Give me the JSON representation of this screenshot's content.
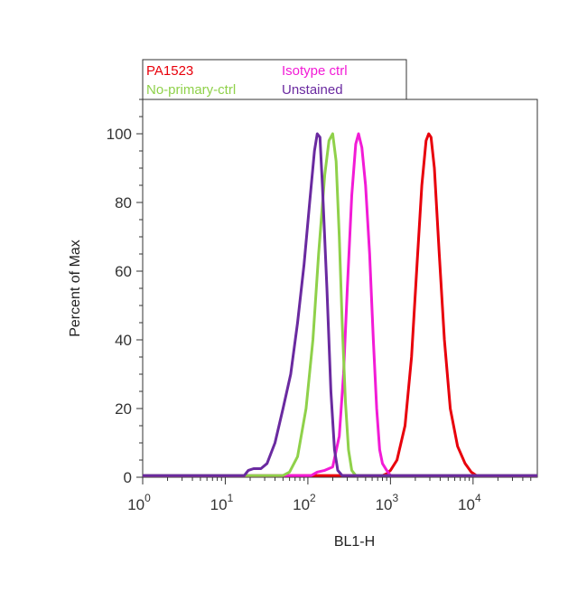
{
  "chart_data": {
    "type": "line",
    "title": "",
    "xlabel": "BL1-H",
    "ylabel": "Percent of Max",
    "x_scale": "log",
    "xlim": [
      1,
      60000
    ],
    "ylim": [
      0,
      110
    ],
    "x_ticks": [
      {
        "value": 1,
        "base": "10",
        "exp": "0"
      },
      {
        "value": 10,
        "base": "10",
        "exp": "1"
      },
      {
        "value": 100,
        "base": "10",
        "exp": "2"
      },
      {
        "value": 1000,
        "base": "10",
        "exp": "3"
      },
      {
        "value": 10000,
        "base": "10",
        "exp": "4"
      }
    ],
    "y_ticks": [
      0,
      20,
      40,
      60,
      80,
      100
    ],
    "grid": false,
    "legend_position": "top-left",
    "series": [
      {
        "name": "PA1523",
        "color": "#e8000b",
        "points": [
          [
            1,
            0.5
          ],
          [
            800,
            0.5
          ],
          [
            900,
            1
          ],
          [
            1000,
            2
          ],
          [
            1200,
            5
          ],
          [
            1500,
            15
          ],
          [
            1800,
            35
          ],
          [
            2100,
            62
          ],
          [
            2400,
            85
          ],
          [
            2700,
            98
          ],
          [
            2900,
            100
          ],
          [
            3100,
            99
          ],
          [
            3400,
            90
          ],
          [
            3900,
            65
          ],
          [
            4500,
            40
          ],
          [
            5300,
            20
          ],
          [
            6500,
            9
          ],
          [
            8000,
            4
          ],
          [
            9500,
            1.5
          ],
          [
            11000,
            0.5
          ],
          [
            60000,
            0.5
          ]
        ]
      },
      {
        "name": "Isotype ctrl",
        "color": "#f21bd6",
        "points": [
          [
            1,
            0.5
          ],
          [
            110,
            0.5
          ],
          [
            130,
            1.5
          ],
          [
            160,
            2
          ],
          [
            200,
            3
          ],
          [
            240,
            12
          ],
          [
            270,
            30
          ],
          [
            300,
            55
          ],
          [
            340,
            82
          ],
          [
            380,
            97
          ],
          [
            410,
            100
          ],
          [
            450,
            96
          ],
          [
            500,
            85
          ],
          [
            560,
            65
          ],
          [
            620,
            40
          ],
          [
            680,
            20
          ],
          [
            740,
            8
          ],
          [
            800,
            4
          ],
          [
            900,
            2
          ],
          [
            1000,
            0.5
          ],
          [
            60000,
            0.5
          ]
        ]
      },
      {
        "name": "No-primary-ctrl",
        "color": "#8fd14a",
        "points": [
          [
            1,
            0.5
          ],
          [
            50,
            0.5
          ],
          [
            60,
            1.5
          ],
          [
            75,
            6
          ],
          [
            95,
            20
          ],
          [
            115,
            40
          ],
          [
            135,
            65
          ],
          [
            160,
            88
          ],
          [
            180,
            98
          ],
          [
            200,
            100
          ],
          [
            220,
            92
          ],
          [
            240,
            70
          ],
          [
            260,
            45
          ],
          [
            285,
            22
          ],
          [
            310,
            8
          ],
          [
            340,
            2
          ],
          [
            380,
            0.5
          ],
          [
            60000,
            0.5
          ]
        ]
      },
      {
        "name": "Unstained",
        "color": "#6a2aa0",
        "points": [
          [
            1,
            0.5
          ],
          [
            17,
            0.5
          ],
          [
            19,
            2
          ],
          [
            22,
            2.5
          ],
          [
            27,
            2.5
          ],
          [
            32,
            4
          ],
          [
            40,
            10
          ],
          [
            50,
            20
          ],
          [
            62,
            30
          ],
          [
            75,
            45
          ],
          [
            90,
            62
          ],
          [
            105,
            80
          ],
          [
            120,
            95
          ],
          [
            130,
            100
          ],
          [
            140,
            99
          ],
          [
            150,
            85
          ],
          [
            170,
            55
          ],
          [
            190,
            25
          ],
          [
            210,
            8
          ],
          [
            230,
            2
          ],
          [
            260,
            0.5
          ],
          [
            60000,
            0.5
          ]
        ]
      }
    ]
  }
}
